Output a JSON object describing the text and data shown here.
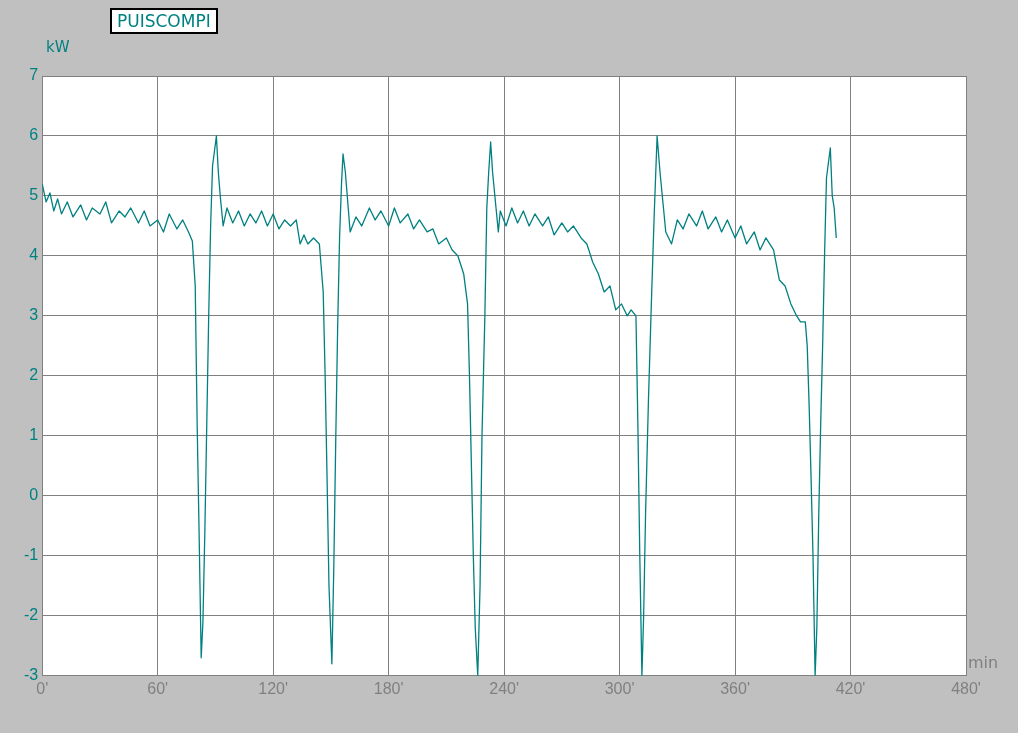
{
  "chart_data": {
    "type": "line",
    "ylabel": "kW",
    "xlabel": "min",
    "legend": "top left",
    "grid": true,
    "marker": "none",
    "line_style": "solid",
    "xlim": [
      0,
      480
    ],
    "ylim": [
      -3,
      7
    ],
    "xticks": [
      {
        "value": 0,
        "label": "0'"
      },
      {
        "value": 60,
        "label": "60'"
      },
      {
        "value": 120,
        "label": "120'"
      },
      {
        "value": 180,
        "label": "180'"
      },
      {
        "value": 240,
        "label": "240'"
      },
      {
        "value": 300,
        "label": "300'"
      },
      {
        "value": 360,
        "label": "360'"
      },
      {
        "value": 420,
        "label": "420'"
      },
      {
        "value": 480,
        "label": "480'"
      }
    ],
    "yticks": [
      -3,
      -2,
      -1,
      0,
      1,
      2,
      3,
      4,
      5,
      6,
      7
    ],
    "series": [
      {
        "name": "PUISCOMPI",
        "color": "#008080",
        "x": [
          0,
          2,
          4,
          6,
          8,
          10,
          13,
          16,
          20,
          23,
          26,
          30,
          33,
          36,
          40,
          43,
          46,
          50,
          53,
          56,
          60,
          63,
          66,
          70,
          73,
          76,
          78,
          79.5,
          80.5,
          81.5,
          82.6,
          83.5,
          84.5,
          85.5,
          86.5,
          87.5,
          88.5,
          90.5,
          91.5,
          92.5,
          94,
          96,
          99,
          102,
          105,
          108,
          111,
          114,
          117,
          120,
          123,
          126,
          129,
          132,
          134,
          136,
          138,
          141,
          144,
          146,
          147,
          148,
          149,
          150.5,
          151.5,
          152.5,
          153.5,
          154.5,
          155.5,
          156.3,
          157.5,
          159,
          160,
          163,
          166,
          170,
          173,
          176,
          180,
          183,
          186,
          190,
          193,
          196,
          200,
          203,
          206,
          210,
          213,
          216,
          219,
          221,
          222,
          223,
          224,
          225,
          226.3,
          227.5,
          228.5,
          230,
          231,
          232,
          233,
          234,
          235.5,
          237,
          238,
          241,
          244,
          247,
          250,
          253,
          256,
          260,
          263,
          266,
          270,
          273,
          276,
          280,
          283,
          286,
          289,
          292,
          295,
          298,
          301,
          304,
          306,
          308.5,
          309.5,
          310.5,
          311.6,
          312.5,
          313.5,
          315,
          316.5,
          318,
          319.5,
          321,
          322.5,
          324,
          327,
          330,
          333,
          336,
          340,
          343,
          346,
          350,
          353,
          356,
          360,
          363,
          366,
          370,
          373,
          376,
          380,
          383,
          386,
          389,
          392,
          394,
          396.5,
          397.5,
          398.5,
          399.5,
          400.5,
          401.6,
          402.5,
          403.5,
          404.5,
          405.5,
          406.5,
          407.5,
          409.5,
          410.5,
          411.5,
          412.6
        ],
        "values": [
          5.2,
          4.9,
          5.05,
          4.75,
          4.95,
          4.7,
          4.9,
          4.65,
          4.85,
          4.6,
          4.8,
          4.7,
          4.9,
          4.55,
          4.75,
          4.65,
          4.8,
          4.55,
          4.75,
          4.5,
          4.6,
          4.4,
          4.7,
          4.45,
          4.6,
          4.4,
          4.25,
          3.5,
          1.2,
          -0.6,
          -2.7,
          -2.1,
          -0.6,
          1.2,
          3.0,
          4.5,
          5.5,
          6.0,
          5.4,
          5.0,
          4.5,
          4.8,
          4.55,
          4.75,
          4.5,
          4.7,
          4.55,
          4.75,
          4.5,
          4.7,
          4.45,
          4.6,
          4.5,
          4.6,
          4.2,
          4.35,
          4.2,
          4.3,
          4.2,
          3.4,
          2.0,
          0.3,
          -1.5,
          -2.8,
          -1.2,
          0.9,
          2.8,
          4.3,
          5.2,
          5.7,
          5.4,
          4.8,
          4.4,
          4.65,
          4.5,
          4.8,
          4.6,
          4.75,
          4.5,
          4.8,
          4.55,
          4.7,
          4.45,
          4.6,
          4.4,
          4.45,
          4.2,
          4.3,
          4.1,
          4.0,
          3.7,
          3.2,
          2.0,
          0.5,
          -1.0,
          -2.2,
          -3.0,
          -1.5,
          1.0,
          3.0,
          4.8,
          5.4,
          5.9,
          5.4,
          4.9,
          4.4,
          4.75,
          4.5,
          4.8,
          4.55,
          4.75,
          4.5,
          4.7,
          4.5,
          4.65,
          4.35,
          4.55,
          4.4,
          4.5,
          4.3,
          4.2,
          3.9,
          3.7,
          3.4,
          3.5,
          3.1,
          3.2,
          3.0,
          3.1,
          3.0,
          1.2,
          -1.0,
          -3.0,
          -2.0,
          -0.3,
          1.6,
          3.2,
          4.7,
          6.0,
          5.4,
          4.9,
          4.4,
          4.2,
          4.6,
          4.45,
          4.7,
          4.5,
          4.75,
          4.45,
          4.65,
          4.4,
          4.6,
          4.3,
          4.5,
          4.2,
          4.4,
          4.1,
          4.3,
          4.1,
          3.6,
          3.5,
          3.2,
          3.0,
          2.9,
          2.9,
          2.5,
          1.5,
          0.3,
          -1.0,
          -3.0,
          -2.2,
          -0.3,
          1.2,
          2.5,
          4.0,
          5.3,
          5.8,
          5.0,
          4.8,
          4.3
        ]
      }
    ]
  }
}
